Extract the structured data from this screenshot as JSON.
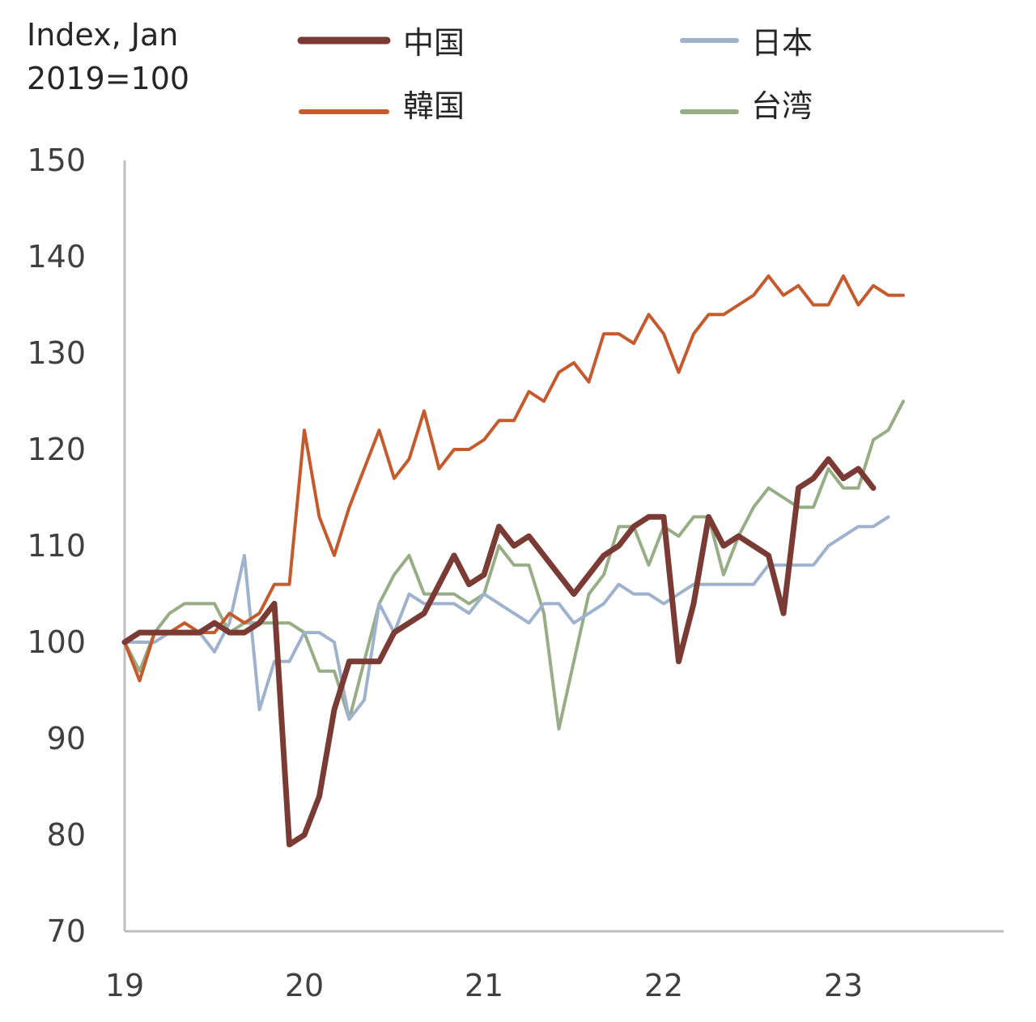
{
  "chart_data": {
    "type": "line",
    "title": "",
    "ylabel_lines": [
      "Index, Jan",
      "2019=100"
    ],
    "xlabel": "",
    "ylim": [
      70,
      150
    ],
    "yticks": [
      70,
      80,
      90,
      100,
      110,
      120,
      130,
      140,
      150
    ],
    "xlim": [
      0,
      59
    ],
    "xticks": [
      {
        "pos": 0,
        "label": "19"
      },
      {
        "pos": 12,
        "label": "20"
      },
      {
        "pos": 24,
        "label": "21"
      },
      {
        "pos": 36,
        "label": "22"
      },
      {
        "pos": 48,
        "label": "23"
      }
    ],
    "legend_position": "top",
    "grid": false,
    "series": [
      {
        "name": "中国",
        "color": "#7b3b35",
        "width": 7,
        "values": [
          100,
          101,
          101,
          101,
          101,
          101,
          102,
          101,
          101,
          102,
          104,
          79,
          80,
          84,
          93,
          98,
          98,
          98,
          101,
          102,
          103,
          106,
          109,
          106,
          107,
          112,
          110,
          111,
          109,
          107,
          105,
          107,
          109,
          110,
          112,
          113,
          113,
          98,
          104,
          113,
          110,
          111,
          110,
          109,
          103,
          116,
          117,
          119,
          117,
          118,
          116
        ]
      },
      {
        "name": "韓国",
        "color": "#c55a2c",
        "width": 4,
        "values": [
          100,
          96,
          101,
          101,
          102,
          101,
          101,
          103,
          102,
          103,
          106,
          106,
          122,
          113,
          109,
          114,
          118,
          122,
          117,
          119,
          124,
          118,
          120,
          120,
          121,
          123,
          123,
          126,
          125,
          128,
          129,
          127,
          132,
          132,
          131,
          134,
          132,
          128,
          132,
          134,
          134,
          135,
          136,
          138,
          136,
          137,
          135,
          135,
          138,
          135,
          137,
          136,
          136
        ]
      },
      {
        "name": "日本",
        "color": "#9fb2cd",
        "width": 4,
        "values": [
          100,
          100,
          100,
          101,
          101,
          101,
          99,
          102,
          109,
          93,
          98,
          98,
          101,
          101,
          100,
          92,
          94,
          104,
          101,
          105,
          104,
          104,
          104,
          103,
          105,
          104,
          103,
          102,
          104,
          104,
          102,
          103,
          104,
          106,
          105,
          105,
          104,
          105,
          106,
          106,
          106,
          106,
          106,
          108,
          108,
          108,
          108,
          110,
          111,
          112,
          112,
          113
        ]
      },
      {
        "name": "台湾",
        "color": "#97ad86",
        "width": 4,
        "values": [
          100,
          97,
          101,
          103,
          104,
          104,
          104,
          101,
          102,
          102,
          102,
          102,
          101,
          97,
          97,
          92,
          98,
          104,
          107,
          109,
          105,
          105,
          105,
          104,
          105,
          110,
          108,
          108,
          103,
          91,
          98,
          105,
          107,
          112,
          112,
          108,
          112,
          111,
          113,
          113,
          107,
          111,
          114,
          116,
          115,
          114,
          114,
          118,
          116,
          116,
          121,
          122,
          125
        ]
      }
    ]
  }
}
